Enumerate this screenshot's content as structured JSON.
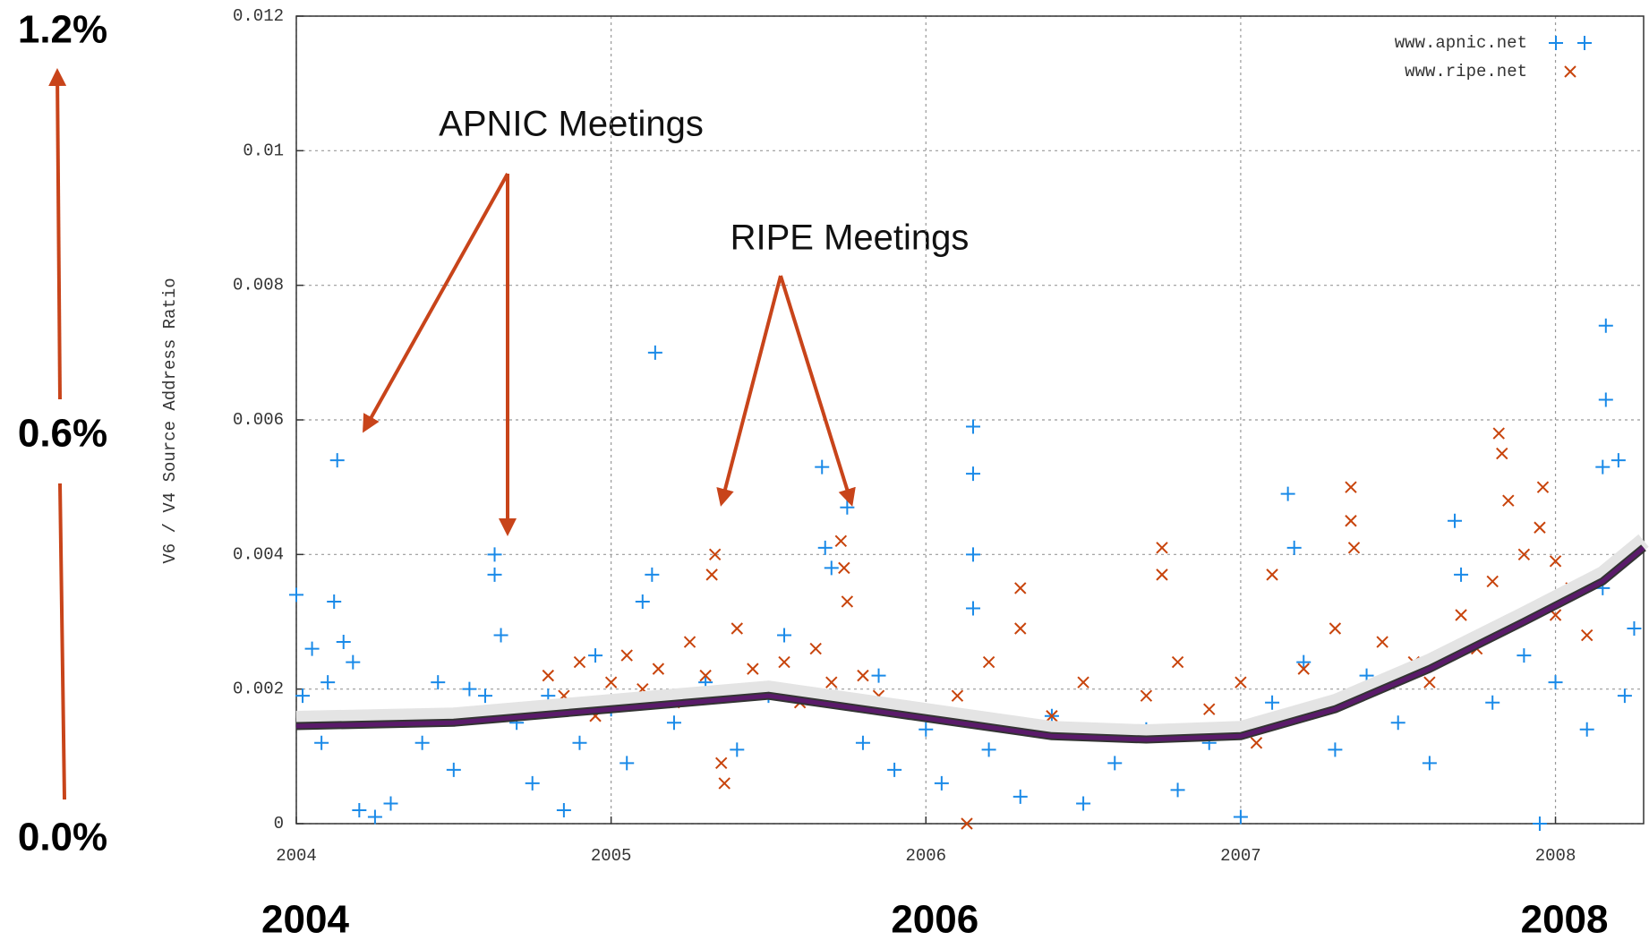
{
  "chart_data": {
    "type": "scatter",
    "y_label": "V6 / V4 Source Address Ratio",
    "xlim": [
      2004,
      2008.28
    ],
    "xticks": [
      2004,
      2005,
      2006,
      2007,
      2008
    ],
    "ylim": [
      0,
      0.012
    ],
    "yticks": [
      0,
      0.002,
      0.004,
      0.006,
      0.008,
      0.01,
      0.012
    ],
    "grid": true,
    "legend": "top-right",
    "y2lim": [
      0,
      0.012
    ],
    "y2ticks": [
      {
        "value": 0,
        "label": "0.0%"
      },
      {
        "value": 0.006,
        "label": "0.6%"
      },
      {
        "value": 0.012,
        "label": "1.2%"
      }
    ],
    "x2ticks": [
      2004,
      2006,
      2008
    ],
    "annotations": [
      "APNIC Meetings",
      "RIPE Meetings"
    ],
    "series": [
      {
        "name": "www.apnic.net",
        "marker": "plus",
        "color": "#1a8ae8",
        "x": [
          2004.0,
          2004.02,
          2004.05,
          2004.08,
          2004.1,
          2004.15,
          2004.12,
          2004.18,
          2004.2,
          2004.25,
          2004.3,
          2004.13,
          2004.35,
          2004.4,
          2004.45,
          2004.5,
          2004.55,
          2004.6,
          2004.63,
          2004.63,
          2004.65,
          2004.7,
          2004.75,
          2004.8,
          2004.85,
          2004.9,
          2004.95,
          2005.0,
          2005.05,
          2005.1,
          2005.13,
          2005.14,
          2005.2,
          2005.3,
          2005.4,
          2005.5,
          2005.55,
          2005.67,
          2005.68,
          2005.7,
          2005.75,
          2005.8,
          2005.85,
          2005.9,
          2006.0,
          2006.05,
          2006.15,
          2006.15,
          2006.15,
          2006.15,
          2006.2,
          2006.3,
          2006.4,
          2006.5,
          2006.6,
          2006.7,
          2006.8,
          2006.9,
          2007.0,
          2007.1,
          2007.15,
          2007.17,
          2007.2,
          2007.3,
          2007.4,
          2007.5,
          2007.6,
          2007.68,
          2007.7,
          2007.8,
          2007.9,
          2007.95,
          2008.0,
          2008.1,
          2008.15,
          2008.15,
          2008.16,
          2008.16,
          2008.2,
          2008.22,
          2008.25
        ],
        "values": [
          0.0034,
          0.0019,
          0.0026,
          0.0012,
          0.0021,
          0.0027,
          0.0033,
          0.0024,
          0.0002,
          0.0001,
          0.0003,
          0.0054,
          0.0016,
          0.0012,
          0.0021,
          0.0008,
          0.002,
          0.0019,
          0.0037,
          0.004,
          0.0028,
          0.0015,
          0.0006,
          0.0019,
          0.0002,
          0.0012,
          0.0025,
          0.0017,
          0.0009,
          0.0033,
          0.0037,
          0.007,
          0.0015,
          0.0021,
          0.0011,
          0.0019,
          0.0028,
          0.0053,
          0.0041,
          0.0038,
          0.0047,
          0.0012,
          0.0022,
          0.0008,
          0.0014,
          0.0006,
          0.0059,
          0.0052,
          0.004,
          0.0032,
          0.0011,
          0.0004,
          0.0016,
          0.0003,
          0.0009,
          0.0014,
          0.0005,
          0.0012,
          0.0001,
          0.0018,
          0.0049,
          0.0041,
          0.0024,
          0.0011,
          0.0022,
          0.0015,
          0.0009,
          0.0045,
          0.0037,
          0.0018,
          0.0025,
          0.0,
          0.0021,
          0.0014,
          0.0035,
          0.0053,
          0.0063,
          0.0074,
          0.0054,
          0.0019,
          0.0029
        ]
      },
      {
        "name": "www.ripe.net",
        "marker": "cross",
        "color": "#c8440c",
        "x": [
          2004.8,
          2004.85,
          2004.9,
          2004.95,
          2005.0,
          2005.05,
          2005.1,
          2005.15,
          2005.2,
          2005.25,
          2005.3,
          2005.32,
          2005.33,
          2005.35,
          2005.36,
          2005.4,
          2005.45,
          2005.5,
          2005.55,
          2005.6,
          2005.65,
          2005.7,
          2005.73,
          2005.74,
          2005.75,
          2005.8,
          2005.85,
          2005.95,
          2006.1,
          2006.13,
          2006.2,
          2006.3,
          2006.3,
          2006.4,
          2006.5,
          2006.6,
          2006.7,
          2006.75,
          2006.75,
          2006.8,
          2006.9,
          2007.0,
          2007.05,
          2007.1,
          2007.2,
          2007.3,
          2007.35,
          2007.35,
          2007.36,
          2007.45,
          2007.55,
          2007.6,
          2007.7,
          2007.75,
          2007.8,
          2007.82,
          2007.83,
          2007.85,
          2007.9,
          2007.95,
          2007.96,
          2008.0,
          2008.0,
          2008.05,
          2008.1
        ],
        "values": [
          0.0022,
          0.0019,
          0.0024,
          0.0016,
          0.0021,
          0.0025,
          0.002,
          0.0023,
          0.0018,
          0.0027,
          0.0022,
          0.0037,
          0.004,
          0.0009,
          0.0006,
          0.0029,
          0.0023,
          0.002,
          0.0024,
          0.0018,
          0.0026,
          0.0021,
          0.0042,
          0.0038,
          0.0033,
          0.0022,
          0.0019,
          0.0017,
          0.0019,
          0.0,
          0.0024,
          0.0035,
          0.0029,
          0.0016,
          0.0021,
          0.0014,
          0.0019,
          0.0041,
          0.0037,
          0.0024,
          0.0017,
          0.0021,
          0.0012,
          0.0037,
          0.0023,
          0.0029,
          0.005,
          0.0045,
          0.0041,
          0.0027,
          0.0024,
          0.0021,
          0.0031,
          0.0026,
          0.0036,
          0.0058,
          0.0055,
          0.0048,
          0.004,
          0.0044,
          0.005,
          0.0039,
          0.0031,
          0.0035,
          0.0028
        ]
      }
    ],
    "trend_line": {
      "color": "#5a1a6a",
      "x": [
        2004,
        2004.5,
        2005,
        2005.5,
        2005.8,
        2006.1,
        2006.4,
        2006.7,
        2007,
        2007.3,
        2007.6,
        2007.9,
        2008.15,
        2008.28
      ],
      "values": [
        0.00145,
        0.0015,
        0.0017,
        0.0019,
        0.0017,
        0.0015,
        0.0013,
        0.00125,
        0.0013,
        0.0017,
        0.0023,
        0.003,
        0.0036,
        0.0041
      ]
    }
  }
}
